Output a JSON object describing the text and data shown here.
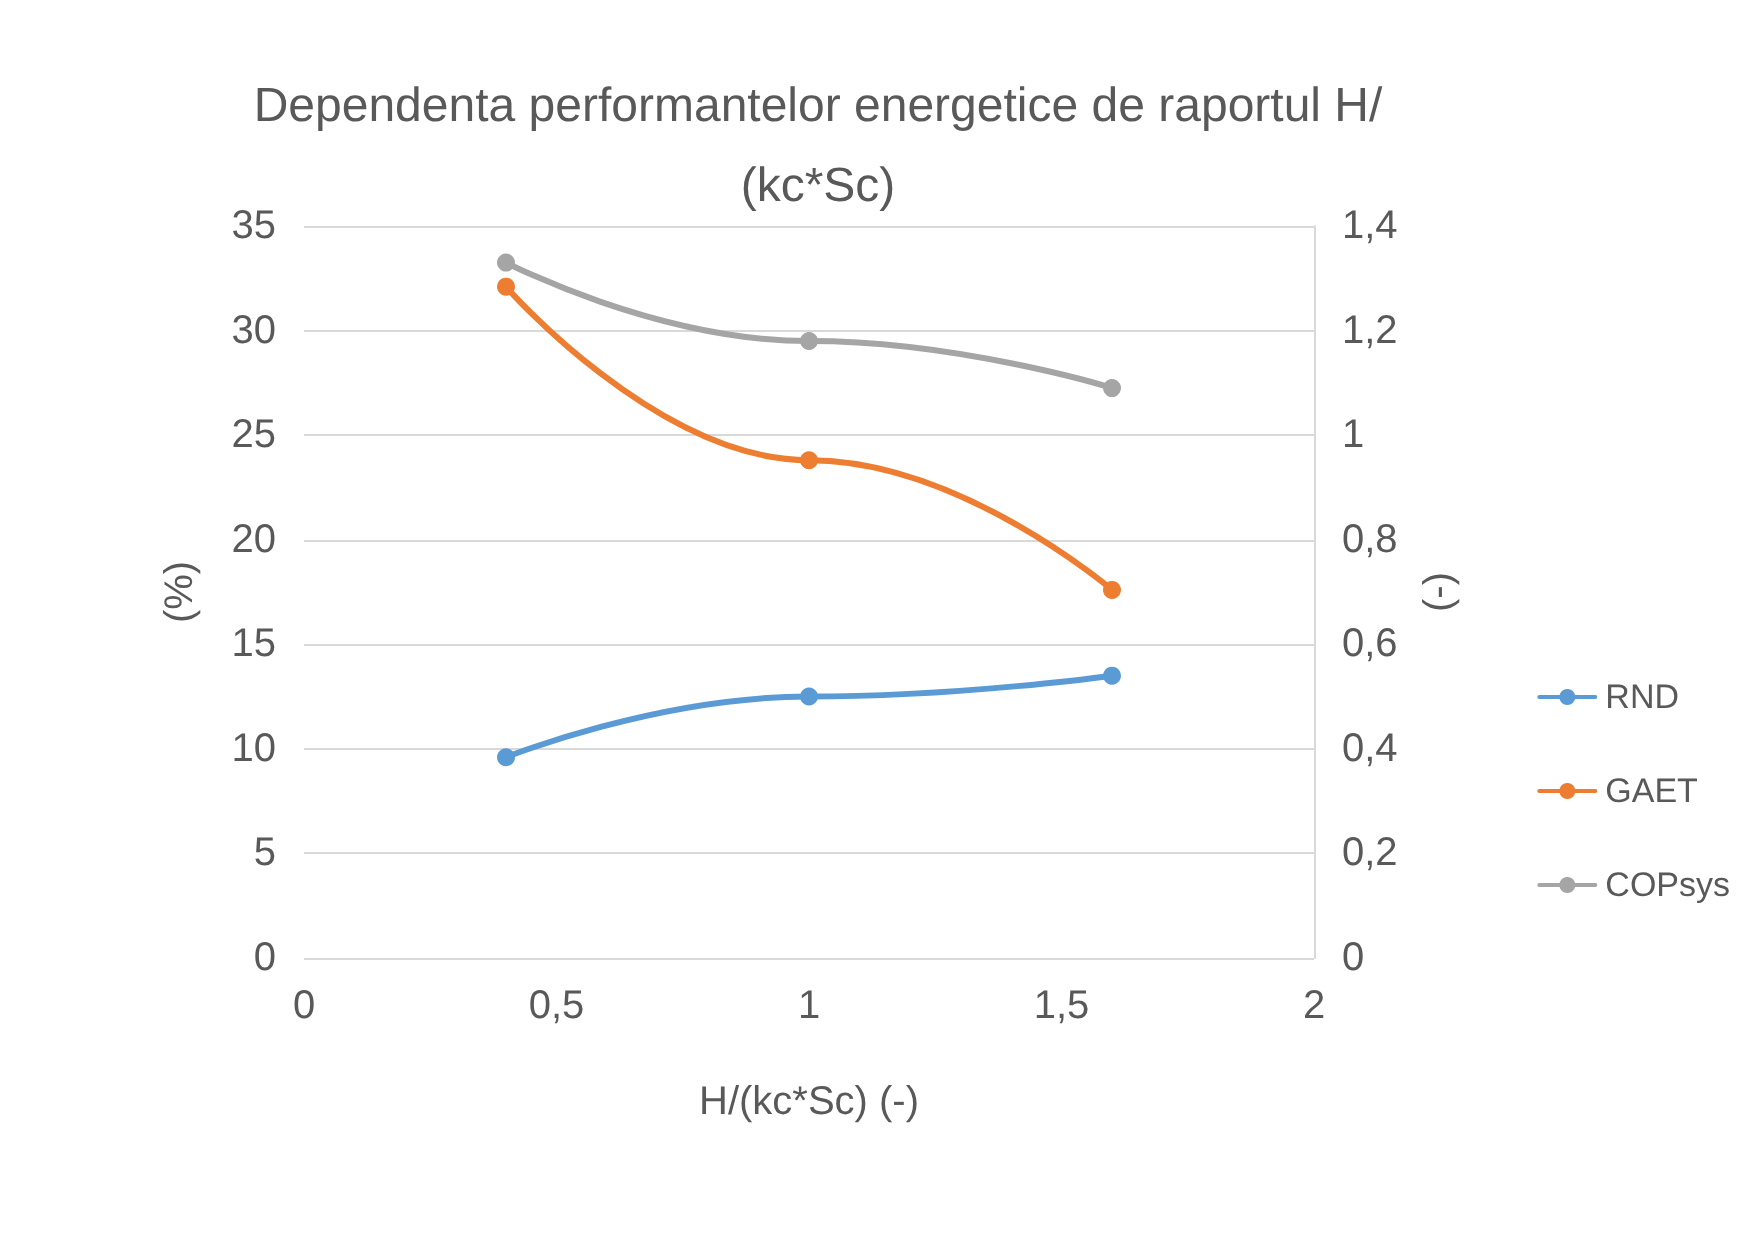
{
  "chart_data": {
    "type": "line",
    "title": "Dependenta performantelor energetice de raportul H/(kc*Sc)",
    "xlabel": "H/(kc*Sc) (-)",
    "ylabel": "(%)",
    "y2label": "(-)",
    "x": [
      0.4,
      1,
      1.6
    ],
    "series": [
      {
        "name": "RND",
        "color": "#5b9bd5",
        "values": [
          9.6,
          12.5,
          13.5
        ]
      },
      {
        "name": "GAET",
        "color": "#ed7d31",
        "values": [
          32.1,
          23.8,
          17.6
        ]
      },
      {
        "name": "COPsys",
        "color": "#a5a5a5",
        "values": [
          1.33,
          1.18,
          1.09
        ],
        "axis": "y2"
      }
    ],
    "xlim": [
      0,
      2
    ],
    "xticks": [
      0,
      {
        "value": 0.5,
        "label": "0,5"
      },
      1,
      {
        "value": 1.5,
        "label": "1,5"
      },
      2
    ],
    "ylim": [
      0,
      35
    ],
    "yticks": [
      0,
      5,
      10,
      15,
      20,
      25,
      30,
      35
    ],
    "y2lim": [
      0,
      1.4
    ],
    "y2ticks": [
      0,
      {
        "value": 0.2,
        "label": "0,2"
      },
      {
        "value": 0.4,
        "label": "0,4"
      },
      {
        "value": 0.6,
        "label": "0,6"
      },
      {
        "value": 0.8,
        "label": "0,8"
      },
      1,
      {
        "value": 1.2,
        "label": "1,2"
      },
      {
        "value": 1.4,
        "label": "1,4"
      }
    ],
    "grid": "y",
    "legend": "right",
    "marker": "circle",
    "line_style": "solid"
  }
}
